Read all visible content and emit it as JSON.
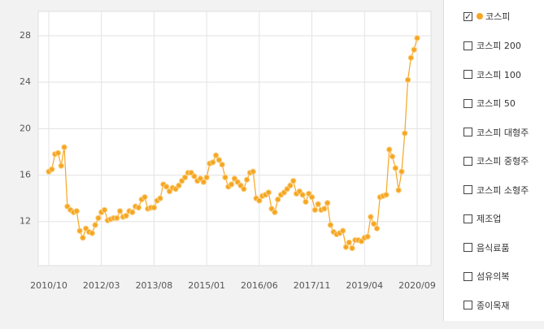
{
  "chart_data": {
    "type": "line",
    "categories": [
      "2010/10",
      null,
      null,
      null,
      null,
      null,
      null,
      null,
      null,
      null,
      null,
      null,
      null,
      null,
      null,
      null,
      null,
      "2012/03",
      null,
      null,
      null,
      null,
      null,
      null,
      null,
      null,
      null,
      null,
      null,
      null,
      null,
      null,
      null,
      null,
      "2013/08",
      null,
      null,
      null,
      null,
      null,
      null,
      null,
      null,
      null,
      null,
      null,
      null,
      null,
      null,
      null,
      null,
      "2015/01",
      null,
      null,
      null,
      null,
      null,
      null,
      null,
      null,
      null,
      null,
      null,
      null,
      null,
      null,
      null,
      null,
      "2016/06",
      null,
      null,
      null,
      null,
      null,
      null,
      null,
      null,
      null,
      null,
      null,
      null,
      null,
      null,
      null,
      null,
      "2017/11",
      null,
      null,
      null,
      null,
      null,
      null,
      null,
      null,
      null,
      null,
      null,
      null,
      null,
      null,
      null,
      null,
      "2019/04",
      null,
      null,
      null,
      null,
      null,
      null,
      null,
      null,
      null,
      null,
      null,
      null,
      null,
      null,
      null,
      null,
      "2020/09"
    ],
    "series": [
      {
        "name": "코스피",
        "color": "#f5a623",
        "values": [
          16.3,
          16.5,
          17.8,
          17.9,
          16.8,
          18.4,
          13.3,
          13.0,
          12.8,
          12.9,
          11.2,
          10.6,
          11.4,
          11.1,
          11.0,
          11.7,
          12.3,
          12.8,
          13.0,
          12.1,
          12.2,
          12.3,
          12.3,
          12.9,
          12.4,
          12.5,
          12.9,
          12.8,
          13.3,
          13.2,
          13.9,
          14.1,
          13.1,
          13.2,
          13.2,
          13.8,
          14.0,
          15.2,
          15.0,
          14.6,
          14.9,
          14.8,
          15.1,
          15.5,
          15.8,
          16.2,
          16.2,
          15.9,
          15.5,
          15.7,
          15.4,
          15.8,
          17.0,
          17.1,
          17.7,
          17.3,
          16.9,
          15.8,
          15.0,
          15.2,
          15.7,
          15.4,
          15.1,
          14.8,
          15.6,
          16.2,
          16.3,
          14.0,
          13.8,
          14.2,
          14.3,
          14.5,
          13.1,
          12.8,
          13.9,
          14.3,
          14.5,
          14.8,
          15.1,
          15.5,
          14.4,
          14.6,
          14.3,
          13.7,
          14.4,
          14.1,
          13.0,
          13.5,
          13.0,
          13.1,
          13.6,
          11.7,
          11.1,
          10.9,
          11.0,
          11.2,
          9.8,
          10.2,
          9.7,
          10.4,
          10.4,
          10.3,
          10.6,
          10.7,
          12.4,
          11.8,
          11.4,
          14.1,
          14.2,
          14.3,
          18.2,
          17.6,
          16.6,
          14.7,
          16.3,
          19.6,
          24.2,
          26.1,
          26.8,
          27.8
        ]
      }
    ],
    "ylim": [
      8.2,
      30.1
    ],
    "yticks": [
      12,
      16,
      20,
      24,
      28
    ],
    "grid": true
  },
  "options": [
    "코스피 200",
    "코스피 100",
    "코스피 50",
    "코스피 대형주",
    "코스피 중형주",
    "코스피 소형주",
    "제조업",
    "음식료품",
    "섬유의복",
    "종이목재"
  ]
}
